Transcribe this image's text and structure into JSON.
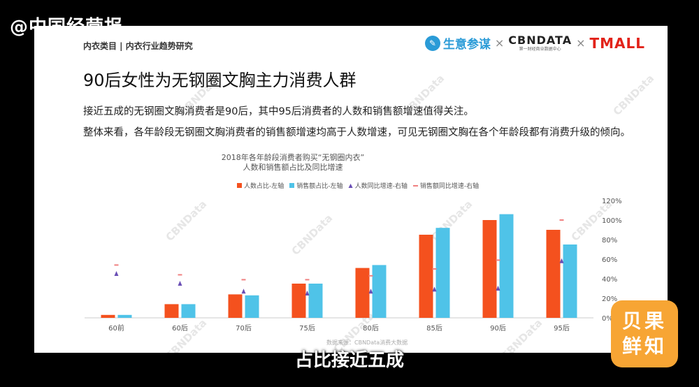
{
  "overlay": {
    "top_watermark": "@中国经营报",
    "subtitle": "占比接近五成",
    "badge_line1": "贝果",
    "badge_line2": "鲜知"
  },
  "slide": {
    "breadcrumb": "内衣类目 | 内衣行业趋势研究",
    "logos": {
      "shengyi": "生意参谋",
      "cbn": "CBNDATA",
      "cbn_sub": "第一财经商业数据中心",
      "tmall": "TMALL",
      "sep": "×"
    },
    "title": "90后女性为无钢圈文胸主力消费人群",
    "para1": "接近五成的无钢圈文胸消费者是90后，其中95后消费者的人数和销售额增速值得关注。",
    "para2": "整体来看，各年龄段无钢圈文胸消费者的销售额增速均高于人数增速，可见无钢圈文胸在各个年龄段都有消费升级的倾向。",
    "source": "数据来源：CBNData消费大数据",
    "watermark": "CBNData"
  },
  "chart_data": {
    "type": "bar",
    "title": "2018年各年龄段消费者购买“无钢圈内衣”",
    "subtitle": "人数和销售额占比及同比增速",
    "categories": [
      "60前",
      "60后",
      "70后",
      "75后",
      "80后",
      "85后",
      "90后",
      "95后"
    ],
    "series": [
      {
        "name": "人数占比-左轴",
        "kind": "bar",
        "color": "#f4511e",
        "values": [
          3,
          14,
          24,
          35,
          51,
          85,
          100,
          90
        ]
      },
      {
        "name": "销售额占比-左轴",
        "kind": "bar",
        "color": "#4fc3e8",
        "values": [
          3,
          14,
          23,
          35,
          54,
          92,
          106,
          75
        ]
      },
      {
        "name": "人数同比增速-右轴",
        "kind": "marker-triangle",
        "color": "#6a4fb5",
        "values": [
          45,
          35,
          27,
          25,
          27,
          29,
          30,
          58
        ]
      },
      {
        "name": "销售额同比增速-右轴",
        "kind": "marker-dash",
        "color": "#f08080",
        "values": [
          54,
          44,
          39,
          39,
          43,
          50,
          59,
          100
        ]
      }
    ],
    "y_right": {
      "ticks": [
        "0%",
        "20%",
        "40%",
        "60%",
        "80%",
        "100%",
        "120%"
      ],
      "ylim": [
        0,
        120
      ]
    },
    "legend_position": "top"
  }
}
